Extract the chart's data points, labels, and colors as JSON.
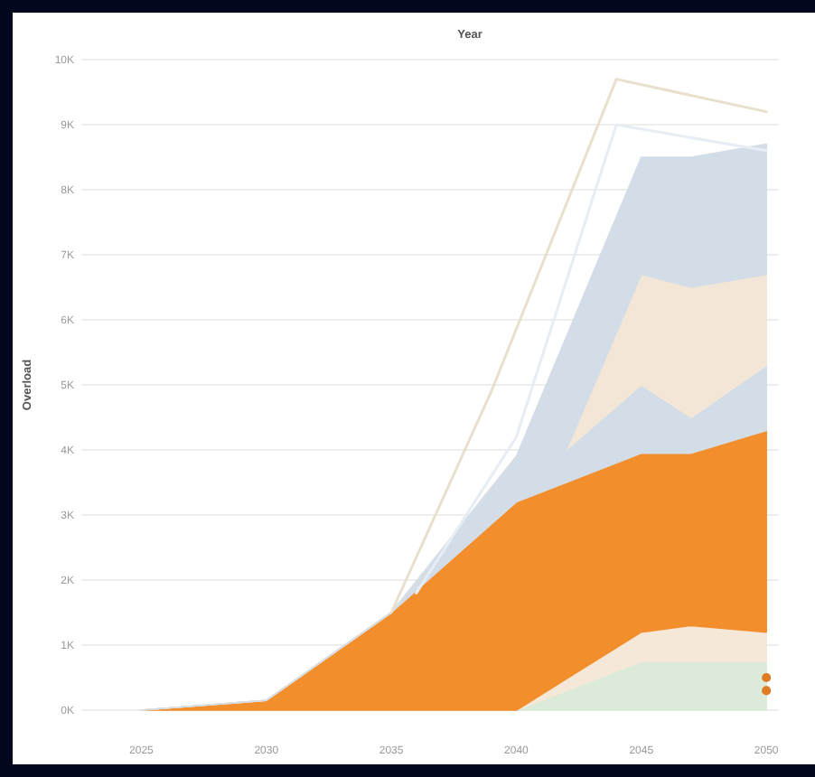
{
  "chart_data": {
    "type": "area",
    "stacked": true,
    "xlabel": "Year",
    "ylabel": "Overload",
    "xlim": [
      2022.6,
      2050.5
    ],
    "ylim": [
      0,
      10000
    ],
    "xticks": [
      2025,
      2030,
      2035,
      2040,
      2045,
      2050
    ],
    "yticks": [
      {
        "value": 0,
        "label": "0K"
      },
      {
        "value": 1000,
        "label": "1K"
      },
      {
        "value": 2000,
        "label": "2K"
      },
      {
        "value": 3000,
        "label": "3K"
      },
      {
        "value": 4000,
        "label": "4K"
      },
      {
        "value": 5000,
        "label": "5K"
      },
      {
        "value": 6000,
        "label": "6K"
      },
      {
        "value": 7000,
        "label": "7K"
      },
      {
        "value": 8000,
        "label": "8K"
      },
      {
        "value": 9000,
        "label": "9K"
      },
      {
        "value": 10000,
        "label": "10K"
      }
    ],
    "grid": "y",
    "x": [
      2025,
      2030,
      2035,
      2040,
      2042,
      2045,
      2047,
      2050
    ],
    "series": [
      {
        "color": "#dcebd9",
        "values": [
          0,
          0,
          0,
          0,
          300,
          750,
          750,
          750
        ]
      },
      {
        "color": "#f5e8d8",
        "values": [
          0,
          0,
          0,
          0,
          180,
          450,
          550,
          450
        ]
      },
      {
        "color": "#f28e2b",
        "values": [
          0,
          150,
          1500,
          3200,
          3020,
          2750,
          2650,
          3100
        ]
      },
      {
        "color": "#d3dde7",
        "values": [
          0,
          0,
          0,
          700,
          500,
          1050,
          550,
          1000
        ]
      },
      {
        "color": "#f3e6d6",
        "values": [
          0,
          0,
          0,
          0,
          0,
          1700,
          2000,
          1400
        ]
      },
      {
        "color": "#d3dde7",
        "values": [
          0,
          0,
          0,
          0,
          1740,
          1800,
          2000,
          2000
        ]
      },
      {
        "type": "line",
        "color": "#e6edf4",
        "x": [
          2036,
          2040,
          2044,
          2050
        ],
        "values": [
          1800,
          4200,
          9000,
          8600
        ]
      },
      {
        "type": "line",
        "color": "#e8e0cc",
        "x": [
          2035,
          2039,
          2044,
          2050
        ],
        "values": [
          1500,
          4900,
          9700,
          9200
        ]
      },
      {
        "type": "scatter",
        "color": "#e07b24",
        "marker": "circle",
        "x": [
          2050,
          2050
        ],
        "values": [
          500,
          300
        ]
      }
    ]
  }
}
